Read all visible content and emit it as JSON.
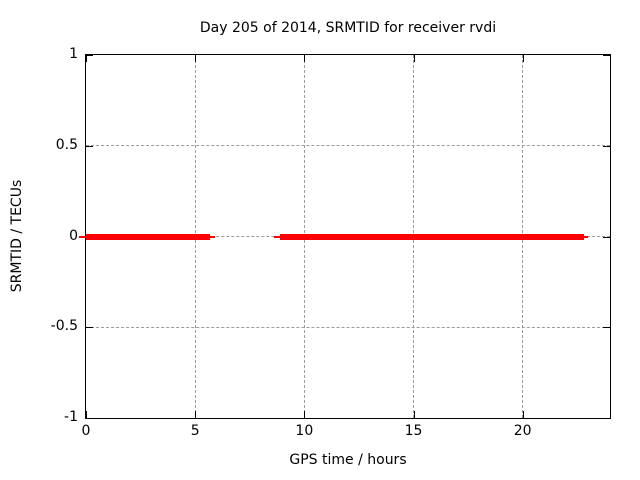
{
  "chart_data": {
    "type": "line",
    "title": "Day 205 of 2014, SRMTID for receiver rvdi",
    "xlabel": "GPS time / hours",
    "ylabel": "SRMTID / TECUs",
    "xlim": [
      0,
      24
    ],
    "ylim": [
      -1,
      1
    ],
    "grid": true,
    "legend": "none",
    "xticks": [
      {
        "v": 0,
        "label": "0"
      },
      {
        "v": 5,
        "label": "5"
      },
      {
        "v": 10,
        "label": "10"
      },
      {
        "v": 15,
        "label": "15"
      },
      {
        "v": 20,
        "label": "20"
      }
    ],
    "yticks": [
      {
        "v": -1,
        "label": "-1"
      },
      {
        "v": -0.5,
        "label": "-0.5"
      },
      {
        "v": 0,
        "label": "0"
      },
      {
        "v": 0.5,
        "label": "0.5"
      },
      {
        "v": 1,
        "label": "1"
      }
    ],
    "series": [
      {
        "name": "SRMTID",
        "color": "#ff0000",
        "y_value": 0,
        "segments": [
          {
            "whisker_start": -0.3,
            "x_start": 0.0,
            "x_end": 5.7,
            "whisker_end": 5.9
          },
          {
            "whisker_start": 8.6,
            "x_start": 8.9,
            "x_end": 22.8,
            "whisker_end": 23.0
          }
        ]
      }
    ],
    "colors": {
      "line": "#ff0000",
      "grid": "#9b9b9b",
      "axis": "#000000",
      "text": "#000000",
      "background": "#ffffff"
    }
  }
}
